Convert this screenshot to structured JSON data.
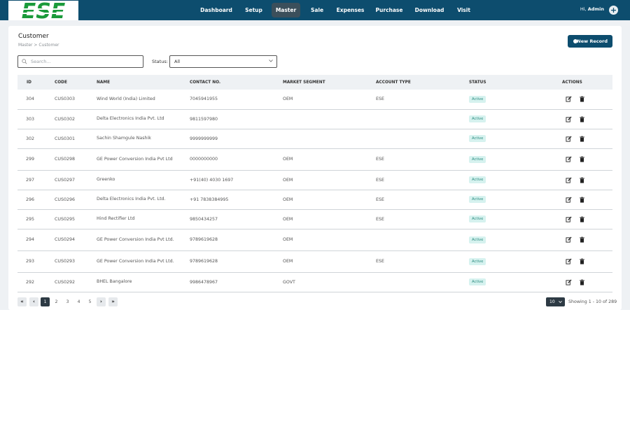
{
  "brand": {
    "logo_text": "ESE"
  },
  "nav": [
    {
      "label": "Dashboard"
    },
    {
      "label": "Setup"
    },
    {
      "label": "Master"
    },
    {
      "label": "Sale"
    },
    {
      "label": "Expenses"
    },
    {
      "label": "Purchase"
    },
    {
      "label": "Download"
    },
    {
      "label": "Visit"
    }
  ],
  "user": {
    "greeting": "Hi,",
    "name": "Admin"
  },
  "page": {
    "title": "Customer",
    "breadcrumb": "Master > Customer",
    "new_button": "New Record"
  },
  "filters": {
    "search_placeholder": "Search...",
    "status_label": "Status:",
    "status_value": "All"
  },
  "table": {
    "headers": {
      "id": "ID",
      "code": "CODE",
      "name": "NAME",
      "contact": "CONTACT NO.",
      "segment": "MARKET SEGMENT",
      "account": "ACCOUNT TYPE",
      "status": "STATUS",
      "actions": "ACTIONS"
    },
    "rows": [
      {
        "id": "304",
        "code": "CUS0303",
        "name": "Wind World (India) Limited",
        "contact": "7045941955",
        "segment": "OEM",
        "account": "ESE",
        "status": "Active"
      },
      {
        "id": "303",
        "code": "CUS0302",
        "name": "Delta Electronics India Pvt. Ltd",
        "contact": "9811597980",
        "segment": "",
        "account": "",
        "status": "Active"
      },
      {
        "id": "302",
        "code": "CUS0301",
        "name": "Sachin Shamgule Nashik",
        "contact": "9999999999",
        "segment": "",
        "account": "",
        "status": "Active"
      },
      {
        "id": "299",
        "code": "CUS0298",
        "name": "GE Power Conversion India Pvt Ltd",
        "contact": "0000000000",
        "segment": "OEM",
        "account": "ESE",
        "status": "Active"
      },
      {
        "id": "297",
        "code": "CUS0297",
        "name": "Greenko",
        "contact": "+91(40) 4030 1697",
        "segment": "OEM",
        "account": "ESE",
        "status": "Active"
      },
      {
        "id": "296",
        "code": "CUS0296",
        "name": "Delta Electronics India Pvt. Ltd.",
        "contact": "+91 7838384995",
        "segment": "OEM",
        "account": "ESE",
        "status": "Active"
      },
      {
        "id": "295",
        "code": "CUS0295",
        "name": "Hind Rectifier Ltd",
        "contact": "9850434257",
        "segment": "OEM",
        "account": "ESE",
        "status": "Active"
      },
      {
        "id": "294",
        "code": "CUS0294",
        "name": "GE Power Conversion India Pvt Ltd.",
        "contact": "9789619628",
        "segment": "OEM",
        "account": "",
        "status": "Active"
      },
      {
        "id": "293",
        "code": "CUS0293",
        "name": "GE Power Conversion India Pvt Ltd.",
        "contact": "9789619628",
        "segment": "OEM",
        "account": "ESE",
        "status": "Active"
      },
      {
        "id": "292",
        "code": "CUS0292",
        "name": "BHEL Bangalore",
        "contact": "9986478967",
        "segment": "GOVT",
        "account": "",
        "status": "Active"
      }
    ]
  },
  "pagination": {
    "first": "«",
    "prev": "‹",
    "next": "›",
    "last": "»",
    "pages": [
      "1",
      "2",
      "3",
      "4",
      "5"
    ],
    "per_page": "10",
    "showing": "Showing 1 - 10 of 289"
  },
  "colors": {
    "primary": "#0d4d6e",
    "active_badge": "#d6f2ef"
  }
}
